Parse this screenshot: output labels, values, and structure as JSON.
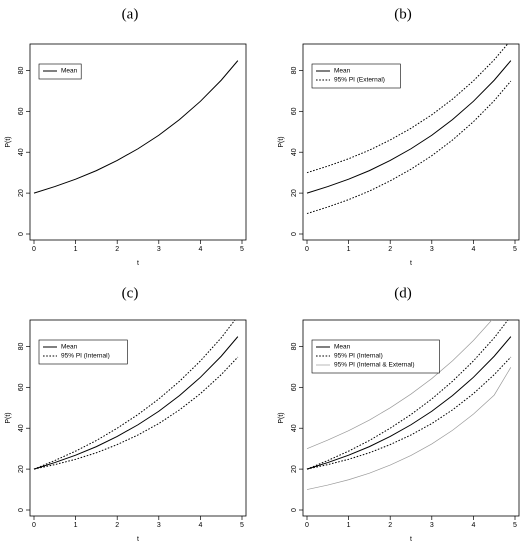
{
  "chart_data": [
    {
      "type": "line",
      "panel_label": "(a)",
      "xlabel": "t",
      "ylabel": "P(t)",
      "xlim": [
        0,
        5
      ],
      "ylim": [
        0,
        90
      ],
      "x_ticks": [
        0,
        1,
        2,
        3,
        4,
        5
      ],
      "y_ticks": [
        0,
        20,
        40,
        60,
        80
      ],
      "grid": false,
      "legend": "top-left",
      "legend_entries": [
        "Mean"
      ],
      "x": [
        0,
        0.5,
        1,
        1.5,
        2,
        2.5,
        3,
        3.5,
        4,
        4.5,
        4.9
      ],
      "series": [
        {
          "name": "Mean",
          "style": "solid",
          "color": "#000000",
          "values": [
            20,
            23.2,
            26.8,
            31.0,
            36.0,
            41.7,
            48.3,
            56.0,
            64.9,
            75.2,
            84.8
          ]
        }
      ]
    },
    {
      "type": "line",
      "panel_label": "(b)",
      "xlabel": "t",
      "ylabel": "P(t)",
      "xlim": [
        0,
        5
      ],
      "ylim": [
        0,
        90
      ],
      "x_ticks": [
        0,
        1,
        2,
        3,
        4,
        5
      ],
      "y_ticks": [
        0,
        20,
        40,
        60,
        80
      ],
      "grid": false,
      "legend": "top-left",
      "legend_entries": [
        "Mean",
        "95% PI (External)"
      ],
      "x": [
        0,
        0.5,
        1,
        1.5,
        2,
        2.5,
        3,
        3.5,
        4,
        4.5,
        4.9
      ],
      "series": [
        {
          "name": "Mean",
          "style": "solid",
          "color": "#000000",
          "values": [
            20,
            23.2,
            26.8,
            31.0,
            36.0,
            41.7,
            48.3,
            56.0,
            64.9,
            75.2,
            84.8
          ]
        },
        {
          "name": "95% PI (External)",
          "style": "dotted",
          "color": "#000000",
          "values": [
            30,
            33.2,
            36.8,
            41.0,
            46.0,
            51.7,
            58.3,
            66.0,
            74.9,
            85.2,
            94.8
          ]
        },
        {
          "name": "95% PI (External)",
          "style": "dotted",
          "color": "#000000",
          "values": [
            10,
            13.2,
            16.8,
            21.0,
            26.0,
            31.7,
            38.3,
            46.0,
            54.9,
            65.2,
            74.8
          ]
        }
      ]
    },
    {
      "type": "line",
      "panel_label": "(c)",
      "xlabel": "t",
      "ylabel": "P(t)",
      "xlim": [
        0,
        5
      ],
      "ylim": [
        0,
        90
      ],
      "x_ticks": [
        0,
        1,
        2,
        3,
        4,
        5
      ],
      "y_ticks": [
        0,
        20,
        40,
        60,
        80
      ],
      "grid": false,
      "legend": "top-left",
      "legend_entries": [
        "Mean",
        "95% PI (Internal)"
      ],
      "x": [
        0,
        0.5,
        1,
        1.5,
        2,
        2.5,
        3,
        3.5,
        4,
        4.5,
        4.9
      ],
      "series": [
        {
          "name": "Mean",
          "style": "solid",
          "color": "#000000",
          "values": [
            20,
            23.2,
            26.8,
            31.0,
            36.0,
            41.7,
            48.3,
            56.0,
            64.9,
            75.2,
            84.8
          ]
        },
        {
          "name": "95% PI (Internal)",
          "style": "dotted",
          "color": "#000000",
          "values": [
            20,
            24.2,
            28.8,
            34.0,
            40.0,
            46.7,
            54.3,
            63.0,
            72.9,
            84.2,
            94.8
          ]
        },
        {
          "name": "95% PI (Internal)",
          "style": "dotted",
          "color": "#000000",
          "values": [
            20,
            22.2,
            24.8,
            28.0,
            32.0,
            36.7,
            42.3,
            49.0,
            56.9,
            66.2,
            74.8
          ]
        }
      ]
    },
    {
      "type": "line",
      "panel_label": "(d)",
      "xlabel": "t",
      "ylabel": "P(t)",
      "xlim": [
        0,
        5
      ],
      "ylim": [
        0,
        90
      ],
      "x_ticks": [
        0,
        1,
        2,
        3,
        4,
        5
      ],
      "y_ticks": [
        0,
        20,
        40,
        60,
        80
      ],
      "grid": false,
      "legend": "top-left",
      "legend_entries": [
        "Mean",
        "95% PI (Internal)",
        "95% PI (Internal & External)"
      ],
      "x": [
        0,
        0.5,
        1,
        1.5,
        2,
        2.5,
        3,
        3.5,
        4,
        4.5,
        4.9
      ],
      "series": [
        {
          "name": "Mean",
          "style": "solid",
          "color": "#000000",
          "values": [
            20,
            23.2,
            26.8,
            31.0,
            36.0,
            41.7,
            48.3,
            56.0,
            64.9,
            75.2,
            84.8
          ]
        },
        {
          "name": "95% PI (Internal)",
          "style": "dotted",
          "color": "#000000",
          "values": [
            20,
            24.2,
            28.8,
            34.0,
            40.0,
            46.7,
            54.3,
            63.0,
            72.9,
            84.2,
            94.8
          ]
        },
        {
          "name": "95% PI (Internal)",
          "style": "dotted",
          "color": "#000000",
          "values": [
            20,
            22.2,
            24.8,
            28.0,
            32.0,
            36.7,
            42.3,
            49.0,
            56.9,
            66.2,
            74.8
          ]
        },
        {
          "name": "95% PI (Internal & External)",
          "style": "solid",
          "color": "#9a9a9a",
          "values": [
            30,
            34.2,
            38.8,
            44.0,
            50.0,
            56.7,
            64.3,
            73.0,
            82.9,
            94.2,
            99.8
          ]
        },
        {
          "name": "95% PI (Internal & External)",
          "style": "solid",
          "color": "#9a9a9a",
          "values": [
            10,
            12.2,
            14.8,
            18.0,
            22.0,
            26.7,
            32.3,
            39.0,
            46.9,
            56.2,
            69.8
          ]
        }
      ]
    }
  ]
}
